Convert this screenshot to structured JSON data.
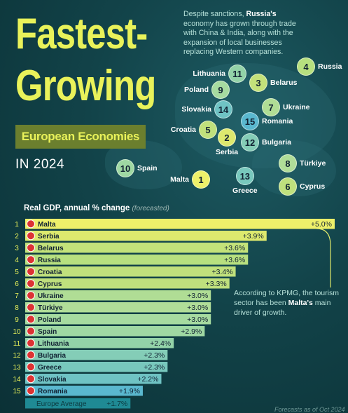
{
  "header": {
    "title_line1": "Fastest-",
    "title_line2": "Growing",
    "subtitle": "European Economies",
    "year": "IN 2024",
    "note_pre": "Despite sanctions, ",
    "note_bold": "Russia's",
    "note_post": " economy has grown through trade with China & India, along with the expansion of local businesses replacing Western companies."
  },
  "map_markers": [
    {
      "rank": "4",
      "name": "Russia",
      "color": "#b7e07f"
    },
    {
      "rank": "11",
      "name": "Lithuania",
      "color": "#93d3a8"
    },
    {
      "rank": "3",
      "name": "Belarus",
      "color": "#c3e27a"
    },
    {
      "rank": "9",
      "name": "Poland",
      "color": "#a6dba0"
    },
    {
      "rank": "7",
      "name": "Ukraine",
      "color": "#b0dd95"
    },
    {
      "rank": "14",
      "name": "Slovakia",
      "color": "#6fc3c4"
    },
    {
      "rank": "15",
      "name": "Romania",
      "color": "#5ab8cf"
    },
    {
      "rank": "5",
      "name": "Croatia",
      "color": "#c0e07c"
    },
    {
      "rank": "2",
      "name": "Serbia",
      "color": "#dde96e"
    },
    {
      "rank": "12",
      "name": "Bulgaria",
      "color": "#84cdb7"
    },
    {
      "rank": "10",
      "name": "Spain",
      "color": "#9fd8a3"
    },
    {
      "rank": "1",
      "name": "Malta",
      "color": "#eef06a"
    },
    {
      "rank": "13",
      "name": "Greece",
      "color": "#78c8bd"
    },
    {
      "rank": "8",
      "name": "Türkiye",
      "color": "#b0dd98"
    },
    {
      "rank": "6",
      "name": "Cyprus",
      "color": "#bfe07d"
    }
  ],
  "gdp_title": "Real GDP, annual % change",
  "gdp_title_note": "(forecasted)",
  "chart_data": {
    "type": "bar",
    "title": "Real GDP, annual % change (forecasted)",
    "ranks": [
      "1",
      "2",
      "3",
      "4",
      "5",
      "6",
      "7",
      "8",
      "9",
      "10",
      "11",
      "12",
      "13",
      "14",
      "15"
    ],
    "categories": [
      "Malta",
      "Serbia",
      "Belarus",
      "Russia",
      "Croatia",
      "Cyprus",
      "Ukraine",
      "Türkiye",
      "Poland",
      "Spain",
      "Lithuania",
      "Bulgaria",
      "Greece",
      "Slovakia",
      "Romania"
    ],
    "values": [
      5.0,
      3.9,
      3.6,
      3.6,
      3.4,
      3.3,
      3.0,
      3.0,
      3.0,
      2.9,
      2.4,
      2.3,
      2.3,
      2.2,
      1.9
    ],
    "value_labels": [
      "+5.0%",
      "+3.9%",
      "+3.6%",
      "+3.6%",
      "+3.4%",
      "+3.3%",
      "+3.0%",
      "+3.0%",
      "+3.0%",
      "+2.9%",
      "+2.4%",
      "+2.3%",
      "+2.3%",
      "+2.2%",
      "+1.9%"
    ],
    "bar_colors": [
      "#eef06a",
      "#dde96e",
      "#c3e27a",
      "#b7e07f",
      "#c0e07c",
      "#bfe07d",
      "#b0dd95",
      "#b0dd98",
      "#a6dba0",
      "#9fd8a3",
      "#93d3a8",
      "#84cdb7",
      "#78c8bd",
      "#6fc3c4",
      "#5ab8cf"
    ],
    "average": {
      "label": "Europe Average",
      "value": 1.7,
      "value_label": "+1.7%",
      "color": "#1f8a94"
    },
    "xlim": [
      0,
      5.0
    ]
  },
  "annotation_pre": "According to KPMG, the tourism sector has been ",
  "annotation_bold": "Malta's",
  "annotation_post": " main driver of growth.",
  "footer": "Forecasts as of Oct 2024"
}
